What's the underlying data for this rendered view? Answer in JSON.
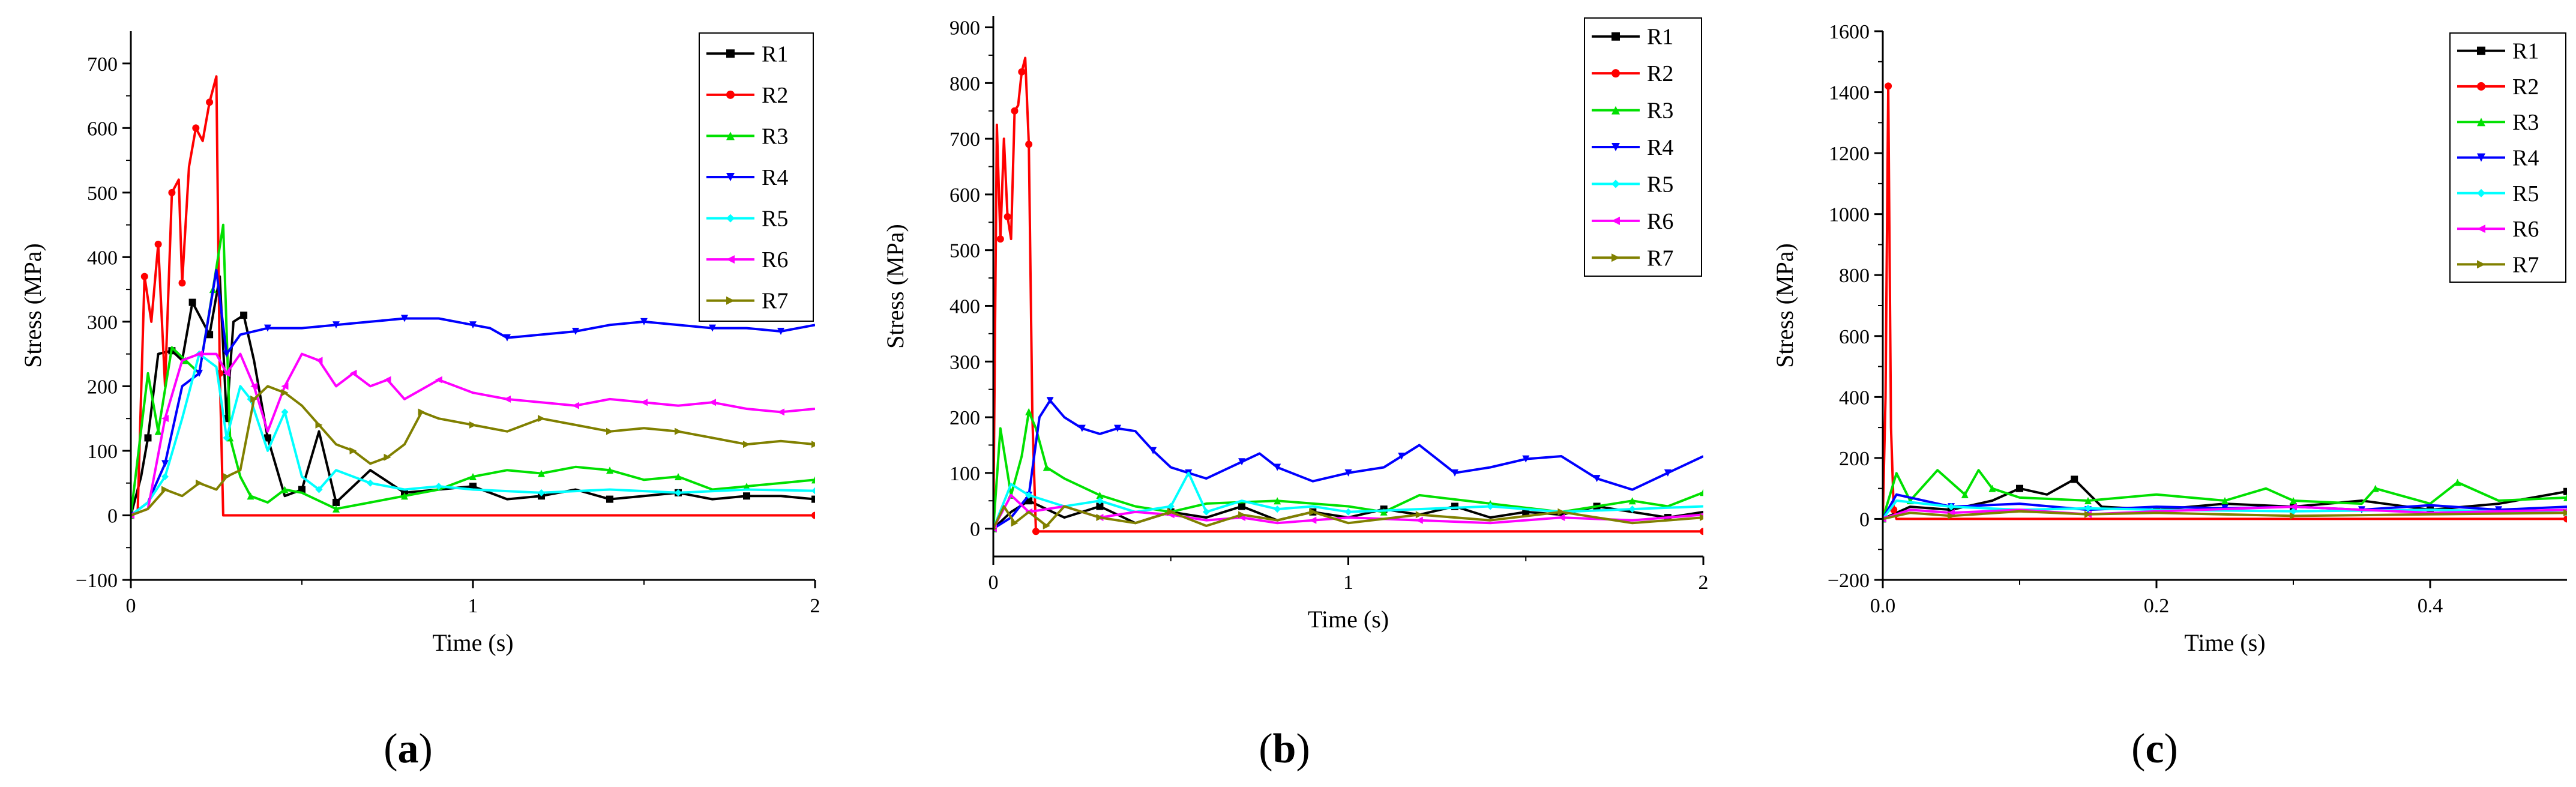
{
  "figure": {
    "panel_labels": [
      {
        "open": "(",
        "letter": "a",
        "close": ")"
      },
      {
        "open": "(",
        "letter": "b",
        "close": ")"
      },
      {
        "open": "(",
        "letter": "c",
        "close": ")"
      }
    ]
  },
  "colors": {
    "R1": "#000000",
    "R2": "#ff0000",
    "R3": "#00e000",
    "R4": "#0000ff",
    "R5": "#00ffff",
    "R6": "#ff00ff",
    "R7": "#808000"
  },
  "chart_data": [
    {
      "type": "line",
      "panel": "a",
      "xlabel": "Time (s)",
      "ylabel": "Stress (MPa)",
      "xlim": [
        0,
        2
      ],
      "ylim": [
        -100,
        750
      ],
      "xticks": [
        0,
        1,
        2
      ],
      "xtick_labels": [
        "0",
        "1",
        "2"
      ],
      "yticks": [
        -100,
        0,
        100,
        200,
        300,
        400,
        500,
        600,
        700
      ],
      "ytick_labels": [
        "−100",
        "0",
        "100",
        "200",
        "300",
        "400",
        "500",
        "600",
        "700"
      ],
      "legend": [
        "R1",
        "R2",
        "R3",
        "R4",
        "R5",
        "R6",
        "R7"
      ],
      "legend_position": "top-right",
      "series": [
        {
          "name": "R1",
          "x": [
            0,
            0.03,
            0.05,
            0.08,
            0.12,
            0.15,
            0.18,
            0.2,
            0.23,
            0.26,
            0.28,
            0.3,
            0.33,
            0.36,
            0.4,
            0.45,
            0.5,
            0.55,
            0.6,
            0.7,
            0.8,
            0.9,
            1.0,
            1.1,
            1.2,
            1.3,
            1.4,
            1.5,
            1.6,
            1.7,
            1.8,
            1.9,
            2.0
          ],
          "y": [
            0,
            60,
            120,
            250,
            255,
            240,
            330,
            310,
            280,
            370,
            150,
            300,
            310,
            240,
            120,
            30,
            40,
            130,
            20,
            70,
            35,
            40,
            45,
            25,
            30,
            40,
            25,
            30,
            35,
            25,
            30,
            30,
            25
          ]
        },
        {
          "name": "R2",
          "x": [
            0,
            0.02,
            0.04,
            0.06,
            0.08,
            0.1,
            0.12,
            0.14,
            0.15,
            0.17,
            0.19,
            0.21,
            0.23,
            0.25,
            0.26,
            0.27,
            2.0
          ],
          "y": [
            0,
            5,
            370,
            300,
            420,
            200,
            500,
            520,
            360,
            540,
            600,
            580,
            640,
            680,
            220,
            0,
            0
          ]
        },
        {
          "name": "R3",
          "x": [
            0,
            0.05,
            0.08,
            0.12,
            0.16,
            0.2,
            0.24,
            0.27,
            0.29,
            0.32,
            0.35,
            0.4,
            0.45,
            0.5,
            0.6,
            0.7,
            0.8,
            0.9,
            1.0,
            1.1,
            1.2,
            1.3,
            1.4,
            1.5,
            1.6,
            1.7,
            1.8,
            1.9,
            2.0
          ],
          "y": [
            0,
            220,
            130,
            260,
            240,
            220,
            350,
            450,
            120,
            60,
            30,
            20,
            40,
            35,
            10,
            20,
            30,
            40,
            60,
            70,
            65,
            75,
            70,
            55,
            60,
            40,
            45,
            50,
            55
          ]
        },
        {
          "name": "R4",
          "x": [
            0,
            0.05,
            0.1,
            0.15,
            0.2,
            0.25,
            0.28,
            0.32,
            0.4,
            0.5,
            0.6,
            0.7,
            0.8,
            0.9,
            1.0,
            1.05,
            1.1,
            1.2,
            1.3,
            1.4,
            1.5,
            1.6,
            1.7,
            1.8,
            1.9,
            2.0
          ],
          "y": [
            0,
            20,
            80,
            200,
            220,
            380,
            250,
            280,
            290,
            290,
            295,
            300,
            305,
            305,
            295,
            290,
            275,
            280,
            285,
            295,
            300,
            295,
            290,
            290,
            285,
            295
          ]
        },
        {
          "name": "R5",
          "x": [
            0,
            0.05,
            0.1,
            0.15,
            0.2,
            0.25,
            0.28,
            0.32,
            0.35,
            0.4,
            0.45,
            0.5,
            0.55,
            0.6,
            0.7,
            0.8,
            0.9,
            1.0,
            1.2,
            1.4,
            1.6,
            1.8,
            2.0
          ],
          "y": [
            0,
            20,
            60,
            150,
            250,
            230,
            120,
            200,
            180,
            100,
            160,
            60,
            40,
            70,
            50,
            40,
            45,
            40,
            35,
            40,
            35,
            40,
            38
          ]
        },
        {
          "name": "R6",
          "x": [
            0,
            0.05,
            0.1,
            0.15,
            0.2,
            0.25,
            0.28,
            0.32,
            0.36,
            0.4,
            0.45,
            0.5,
            0.55,
            0.6,
            0.65,
            0.7,
            0.75,
            0.8,
            0.9,
            1.0,
            1.1,
            1.2,
            1.3,
            1.4,
            1.5,
            1.6,
            1.7,
            1.8,
            1.9,
            2.0
          ],
          "y": [
            0,
            10,
            150,
            240,
            250,
            250,
            220,
            250,
            200,
            130,
            200,
            250,
            240,
            200,
            220,
            200,
            210,
            180,
            210,
            190,
            180,
            175,
            170,
            180,
            175,
            170,
            175,
            165,
            160,
            165
          ]
        },
        {
          "name": "R7",
          "x": [
            0,
            0.05,
            0.1,
            0.15,
            0.2,
            0.25,
            0.28,
            0.32,
            0.36,
            0.4,
            0.45,
            0.5,
            0.55,
            0.6,
            0.65,
            0.7,
            0.75,
            0.8,
            0.85,
            0.9,
            1.0,
            1.1,
            1.2,
            1.3,
            1.4,
            1.5,
            1.6,
            1.7,
            1.8,
            1.9,
            2.0
          ],
          "y": [
            0,
            10,
            40,
            30,
            50,
            40,
            60,
            70,
            180,
            200,
            190,
            170,
            140,
            110,
            100,
            80,
            90,
            110,
            160,
            150,
            140,
            130,
            150,
            140,
            130,
            135,
            130,
            120,
            110,
            115,
            110
          ]
        }
      ]
    },
    {
      "type": "line",
      "panel": "b",
      "xlabel": "Time (s)",
      "ylabel": "Stress (MPa)",
      "xlim": [
        0,
        2
      ],
      "ylim": [
        -50,
        920
      ],
      "xticks": [
        0,
        1,
        2
      ],
      "xtick_labels": [
        "0",
        "1",
        "2"
      ],
      "yticks": [
        0,
        100,
        200,
        300,
        400,
        500,
        600,
        700,
        800,
        900
      ],
      "ytick_labels": [
        "0",
        "100",
        "200",
        "300",
        "400",
        "500",
        "600",
        "700",
        "800",
        "900"
      ],
      "legend": [
        "R1",
        "R2",
        "R3",
        "R4",
        "R5",
        "R6",
        "R7"
      ],
      "legend_position": "top-right",
      "series": [
        {
          "name": "R1",
          "x": [
            0,
            0.05,
            0.1,
            0.2,
            0.3,
            0.4,
            0.5,
            0.6,
            0.7,
            0.8,
            0.9,
            1.0,
            1.1,
            1.2,
            1.3,
            1.4,
            1.5,
            1.6,
            1.7,
            1.8,
            1.9,
            2.0
          ],
          "y": [
            0,
            30,
            50,
            20,
            40,
            10,
            30,
            20,
            40,
            15,
            30,
            20,
            35,
            25,
            40,
            20,
            30,
            25,
            40,
            30,
            20,
            30
          ]
        },
        {
          "name": "R2",
          "x": [
            0,
            0.01,
            0.02,
            0.03,
            0.04,
            0.05,
            0.06,
            0.07,
            0.08,
            0.09,
            0.1,
            0.11,
            0.12,
            0.15,
            2.0
          ],
          "y": [
            0,
            725,
            520,
            700,
            560,
            520,
            750,
            760,
            820,
            845,
            690,
            200,
            -5,
            -5,
            -5
          ]
        },
        {
          "name": "R3",
          "x": [
            0,
            0.02,
            0.05,
            0.08,
            0.1,
            0.12,
            0.15,
            0.2,
            0.3,
            0.4,
            0.5,
            0.6,
            0.8,
            1.0,
            1.1,
            1.2,
            1.4,
            1.6,
            1.8,
            1.9,
            2.0
          ],
          "y": [
            0,
            180,
            60,
            130,
            210,
            180,
            110,
            90,
            60,
            40,
            30,
            45,
            50,
            40,
            30,
            60,
            45,
            30,
            50,
            40,
            65
          ]
        },
        {
          "name": "R4",
          "x": [
            0,
            0.05,
            0.1,
            0.13,
            0.16,
            0.2,
            0.25,
            0.3,
            0.35,
            0.4,
            0.45,
            0.5,
            0.55,
            0.6,
            0.7,
            0.75,
            0.8,
            0.9,
            1.0,
            1.1,
            1.15,
            1.2,
            1.3,
            1.4,
            1.5,
            1.6,
            1.7,
            1.8,
            1.9,
            2.0
          ],
          "y": [
            0,
            20,
            60,
            200,
            230,
            200,
            180,
            170,
            180,
            175,
            140,
            110,
            100,
            90,
            120,
            135,
            110,
            85,
            100,
            110,
            130,
            150,
            100,
            110,
            125,
            130,
            90,
            70,
            100,
            130
          ]
        },
        {
          "name": "R5",
          "x": [
            0,
            0.05,
            0.1,
            0.2,
            0.3,
            0.4,
            0.5,
            0.55,
            0.6,
            0.7,
            0.8,
            0.9,
            1.0,
            1.2,
            1.4,
            1.6,
            1.8,
            2.0
          ],
          "y": [
            0,
            80,
            60,
            40,
            50,
            30,
            40,
            100,
            30,
            50,
            35,
            40,
            30,
            35,
            40,
            30,
            35,
            40
          ]
        },
        {
          "name": "R6",
          "x": [
            0,
            0.05,
            0.1,
            0.2,
            0.3,
            0.4,
            0.5,
            0.6,
            0.7,
            0.8,
            0.9,
            1.0,
            1.2,
            1.4,
            1.6,
            1.8,
            2.0
          ],
          "y": [
            0,
            60,
            30,
            40,
            20,
            30,
            25,
            15,
            20,
            10,
            15,
            20,
            15,
            10,
            20,
            15,
            25
          ]
        },
        {
          "name": "R7",
          "x": [
            0,
            0.03,
            0.06,
            0.1,
            0.15,
            0.2,
            0.3,
            0.4,
            0.5,
            0.6,
            0.7,
            0.8,
            0.9,
            1.0,
            1.2,
            1.4,
            1.6,
            1.8,
            2.0
          ],
          "y": [
            0,
            40,
            10,
            30,
            5,
            40,
            20,
            10,
            30,
            5,
            25,
            15,
            30,
            10,
            25,
            15,
            30,
            10,
            20
          ]
        }
      ]
    },
    {
      "type": "line",
      "panel": "c",
      "xlabel": "Time (s)",
      "ylabel": "Stress (MPa)",
      "xlim": [
        0,
        0.5
      ],
      "ylim": [
        -200,
        1600
      ],
      "xticks": [
        0,
        0.2,
        0.4
      ],
      "xtick_labels": [
        "0.0",
        "0.2",
        "0.4"
      ],
      "yticks": [
        -200,
        0,
        200,
        400,
        600,
        800,
        1000,
        1200,
        1400,
        1600
      ],
      "ytick_labels": [
        "−200",
        "0",
        "200",
        "400",
        "600",
        "800",
        "1000",
        "1200",
        "1400",
        "1600"
      ],
      "legend": [
        "R1",
        "R2",
        "R3",
        "R4",
        "R5",
        "R6",
        "R7"
      ],
      "legend_position": "top-right",
      "series": [
        {
          "name": "R1",
          "x": [
            0,
            0.02,
            0.05,
            0.08,
            0.1,
            0.12,
            0.14,
            0.16,
            0.2,
            0.25,
            0.3,
            0.35,
            0.4,
            0.45,
            0.5
          ],
          "y": [
            0,
            40,
            30,
            60,
            100,
            80,
            130,
            40,
            30,
            50,
            40,
            60,
            30,
            50,
            90
          ]
        },
        {
          "name": "R2",
          "x": [
            0,
            0.002,
            0.004,
            0.006,
            0.008,
            0.01,
            0.5
          ],
          "y": [
            0,
            400,
            1420,
            300,
            30,
            0,
            0
          ]
        },
        {
          "name": "R3",
          "x": [
            0,
            0.01,
            0.02,
            0.04,
            0.06,
            0.07,
            0.08,
            0.1,
            0.15,
            0.2,
            0.25,
            0.28,
            0.3,
            0.35,
            0.36,
            0.4,
            0.42,
            0.45,
            0.5
          ],
          "y": [
            0,
            150,
            60,
            160,
            80,
            160,
            100,
            70,
            60,
            80,
            60,
            100,
            60,
            50,
            100,
            50,
            120,
            60,
            70
          ]
        },
        {
          "name": "R4",
          "x": [
            0,
            0.01,
            0.05,
            0.1,
            0.15,
            0.2,
            0.25,
            0.3,
            0.35,
            0.4,
            0.45,
            0.5
          ],
          "y": [
            0,
            80,
            40,
            50,
            30,
            40,
            35,
            40,
            30,
            45,
            30,
            40
          ]
        },
        {
          "name": "R5",
          "x": [
            0,
            0.01,
            0.05,
            0.1,
            0.15,
            0.2,
            0.3,
            0.4,
            0.5
          ],
          "y": [
            0,
            60,
            40,
            30,
            35,
            30,
            25,
            30,
            20
          ]
        },
        {
          "name": "R6",
          "x": [
            0,
            0.02,
            0.05,
            0.1,
            0.15,
            0.2,
            0.3,
            0.4,
            0.5
          ],
          "y": [
            0,
            30,
            20,
            30,
            15,
            25,
            40,
            20,
            30
          ]
        },
        {
          "name": "R7",
          "x": [
            0,
            0.02,
            0.05,
            0.1,
            0.15,
            0.2,
            0.3,
            0.4,
            0.5
          ],
          "y": [
            0,
            20,
            10,
            25,
            15,
            20,
            10,
            15,
            20
          ]
        }
      ]
    }
  ]
}
